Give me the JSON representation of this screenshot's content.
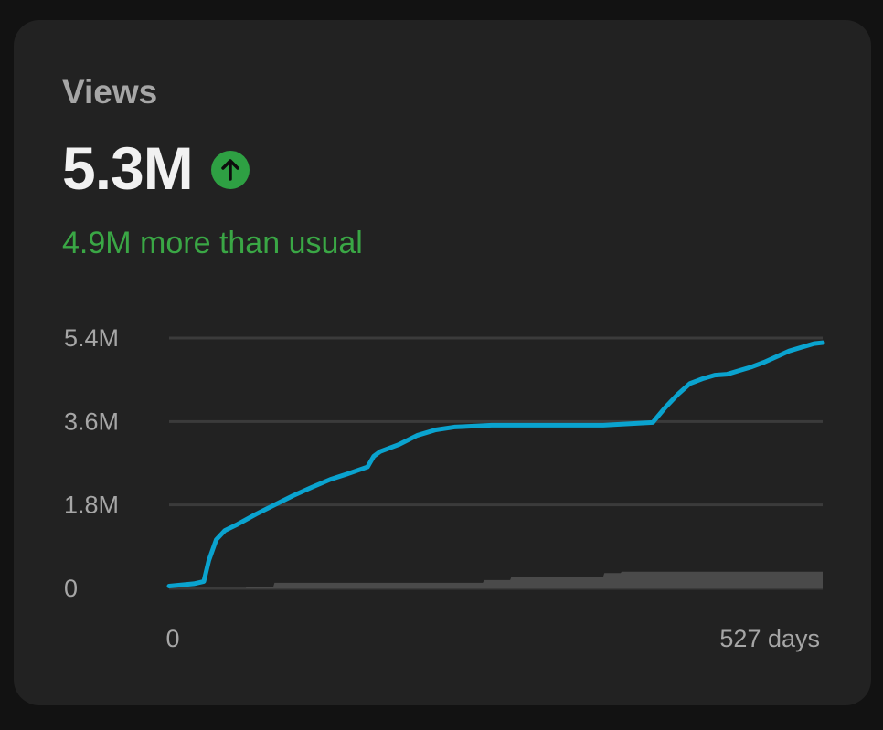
{
  "card": {
    "title": "Views",
    "value": "5.3M",
    "trend_icon": "arrow-up-circle-icon",
    "comparison": "4.9M more than usual"
  },
  "colors": {
    "background": "#121212",
    "card": "#222222",
    "primary_line": "#0aa3cf",
    "baseline_area": "#4a4a4a",
    "positive": "#2ea043",
    "grid": "#3b3b3b",
    "text_muted": "#a6a6a6"
  },
  "chart_data": {
    "type": "line",
    "xlim": [
      0,
      527
    ],
    "ylim": [
      0,
      5.4
    ],
    "y_unit": "M",
    "yticks": [
      0,
      1.8,
      3.6,
      5.4
    ],
    "ytick_labels": [
      "0",
      "1.8M",
      "3.6M",
      "5.4M"
    ],
    "xtick_labels": [
      "0",
      "527 days"
    ],
    "grid": true,
    "series": [
      {
        "role": "views",
        "color": "#0aa3cf",
        "x": [
          0,
          20,
          28,
          32,
          38,
          45,
          55,
          70,
          85,
          100,
          115,
          130,
          145,
          160,
          165,
          170,
          185,
          200,
          215,
          230,
          260,
          300,
          350,
          390,
          400,
          410,
          420,
          430,
          440,
          450,
          460,
          470,
          480,
          490,
          500,
          510,
          520,
          527
        ],
        "y": [
          0.05,
          0.1,
          0.15,
          0.6,
          1.05,
          1.25,
          1.38,
          1.6,
          1.8,
          2.0,
          2.18,
          2.35,
          2.48,
          2.62,
          2.85,
          2.95,
          3.1,
          3.3,
          3.42,
          3.48,
          3.52,
          3.52,
          3.52,
          3.58,
          3.9,
          4.18,
          4.42,
          4.52,
          4.6,
          4.62,
          4.7,
          4.78,
          4.88,
          5.0,
          5.12,
          5.2,
          5.28,
          5.3
        ]
      },
      {
        "role": "typical",
        "color": "#4a4a4a",
        "x": [
          62,
          84,
          85,
          253,
          254,
          275,
          276,
          350,
          351,
          364,
          365,
          527
        ],
        "y": [
          0.03,
          0.03,
          0.12,
          0.12,
          0.18,
          0.18,
          0.25,
          0.25,
          0.33,
          0.33,
          0.36,
          0.36
        ]
      }
    ]
  }
}
